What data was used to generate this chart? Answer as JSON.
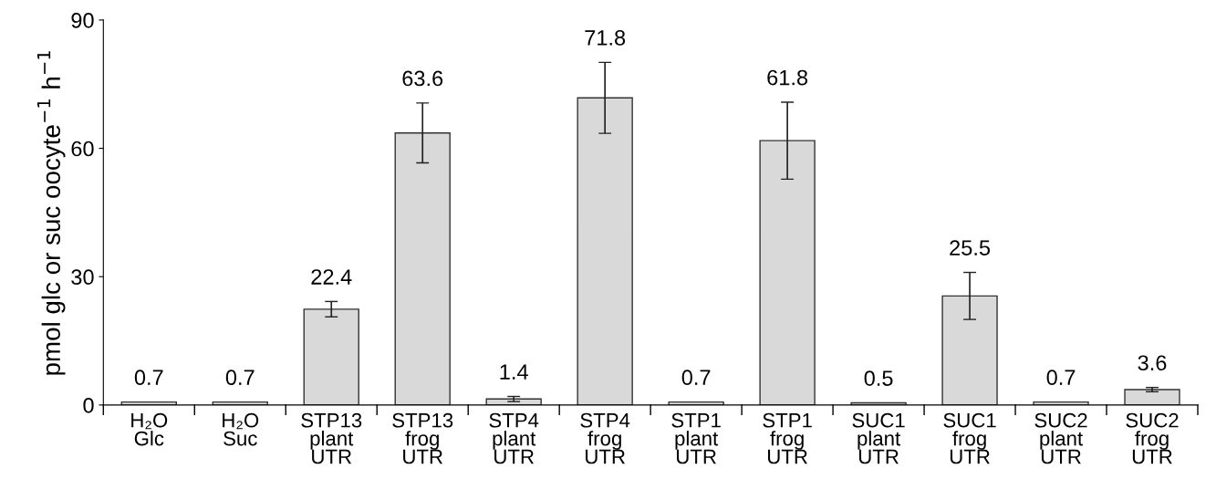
{
  "chart_data": {
    "type": "bar",
    "ylabel": "pmol glc or suc oocyte$^{−1}$ h$^{−1}$",
    "categories": [
      "H₂O\nGlc",
      "H₂O\nSuc",
      "STP13\nplant\nUTR",
      "STP13\nfrog\nUTR",
      "STP4\nplant\nUTR",
      "STP4\nfrog\nUTR",
      "STP1\nplant\nUTR",
      "STP1\nfrog\nUTR",
      "SUC1\nplant\nUTR",
      "SUC1\nfrog\nUTR",
      "SUC2\nplant\nUTR",
      "SUC2\nfrog\nUTR"
    ],
    "values": [
      0.7,
      0.7,
      22.4,
      63.6,
      1.4,
      71.8,
      0.7,
      61.8,
      0.5,
      25.5,
      0.7,
      3.6
    ],
    "errors": [
      null,
      null,
      1.8,
      7,
      0.6,
      8.3,
      null,
      9,
      null,
      5.5,
      null,
      0.5
    ],
    "color": "#d9d9d9",
    "ylim": [
      0,
      90
    ],
    "yticks": [
      0,
      30,
      60,
      90
    ],
    "data_labels": true
  }
}
